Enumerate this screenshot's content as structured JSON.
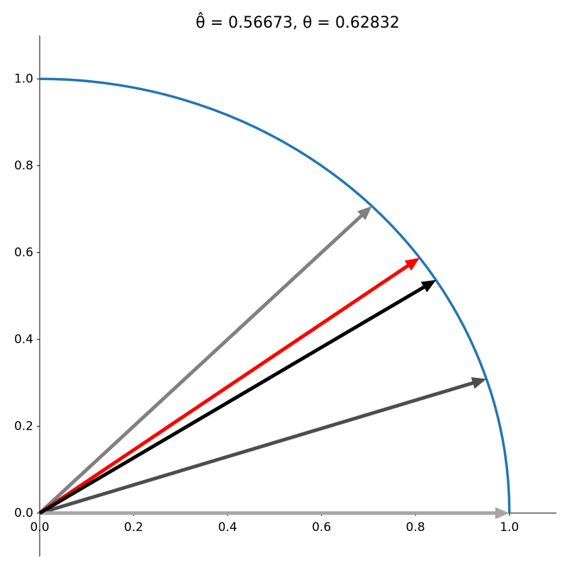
{
  "chart_data": {
    "type": "quiver",
    "title": "θ̂ = 0.56673, θ = 0.62832",
    "xlim": [
      0,
      1.1
    ],
    "ylim": [
      -0.1,
      1.1
    ],
    "xticks": [
      {
        "value": 0,
        "label": "0.0"
      },
      {
        "value": 0.2,
        "label": "0.2"
      },
      {
        "value": 0.4,
        "label": "0.4"
      },
      {
        "value": 0.6,
        "label": "0.6"
      },
      {
        "value": 0.8,
        "label": "0.8"
      },
      {
        "value": 1,
        "label": "1.0"
      }
    ],
    "yticks": [
      {
        "value": 0,
        "label": "0.0"
      },
      {
        "value": 0.2,
        "label": "0.2"
      },
      {
        "value": 0.4,
        "label": "0.4"
      },
      {
        "value": 0.6,
        "label": "0.6"
      },
      {
        "value": 0.8,
        "label": "0.8"
      },
      {
        "value": 1,
        "label": "1.0"
      }
    ],
    "arc": {
      "radius": 1,
      "color": "#1f77b4"
    },
    "vectors": [
      {
        "x": 0.707,
        "y": 0.707,
        "color": "#808080"
      },
      {
        "x": 0.951,
        "y": 0.309,
        "color": "#4d4d4d"
      },
      {
        "x": 1,
        "y": 0,
        "color": "#a6a6a6"
      },
      {
        "x": 0.809,
        "y": 0.588,
        "color": "#ff0000"
      },
      {
        "x": 0.844,
        "y": 0.537,
        "color": "#000000"
      }
    ]
  }
}
